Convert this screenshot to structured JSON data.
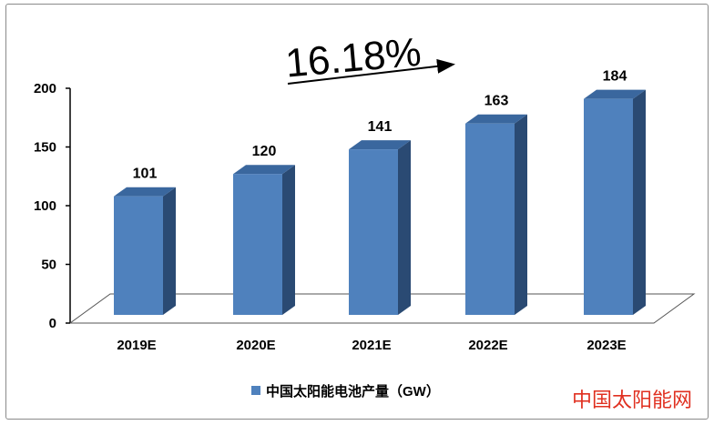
{
  "chart_data": {
    "type": "bar",
    "categories": [
      "2019E",
      "2020E",
      "2021E",
      "2022E",
      "2023E"
    ],
    "series": [
      {
        "name": "中国太阳能电池产量（GW）",
        "values": [
          101,
          120,
          141,
          163,
          184
        ]
      }
    ],
    "data_labels": [
      "101",
      "120",
      "141",
      "163",
      "184"
    ],
    "y_ticks": [
      "0",
      "50",
      "100",
      "150",
      "200"
    ],
    "ylim": [
      0,
      200
    ],
    "title": "",
    "xlabel": "",
    "ylabel": "",
    "legend_position": "bottom",
    "grid": false,
    "annotation": "16.18%",
    "bar_color": "#4f81bd",
    "bar_top_color": "#3a679e",
    "bar_side_color": "#2a4a73"
  },
  "watermark": "中国太阳能网"
}
